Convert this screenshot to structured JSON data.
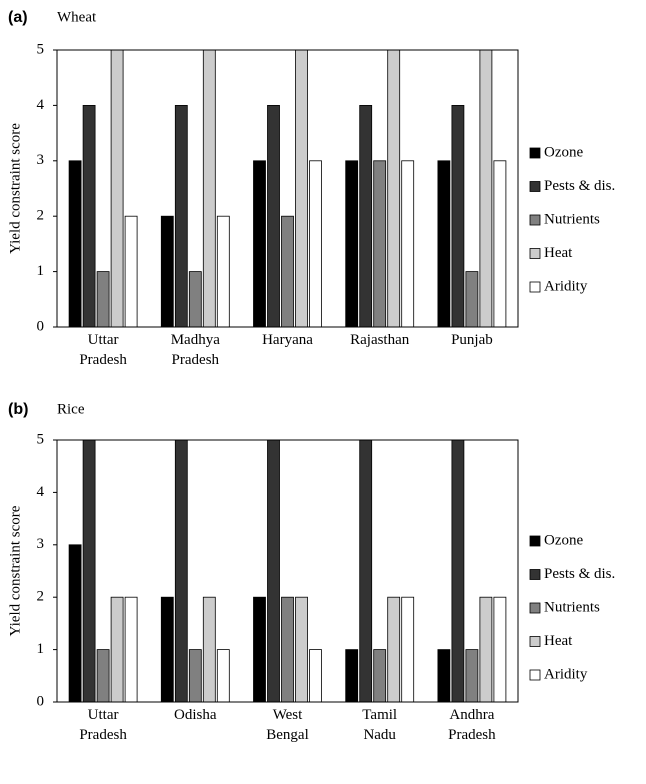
{
  "chart_data": [
    {
      "type": "bar",
      "panel_label": "(a)",
      "title": "Wheat",
      "ylabel": "Yield constraint score",
      "categories": [
        "Uttar Pradesh",
        "Madhya Pradesh",
        "Haryana",
        "Rajasthan",
        "Punjab"
      ],
      "series": [
        {
          "name": "Ozone",
          "color": "#000000",
          "values": [
            3,
            2,
            3,
            3,
            3
          ]
        },
        {
          "name": "Pests & dis.",
          "color": "#333333",
          "values": [
            4,
            4,
            4,
            4,
            4
          ]
        },
        {
          "name": "Nutrients",
          "color": "#808080",
          "values": [
            1,
            1,
            2,
            3,
            1
          ]
        },
        {
          "name": "Heat",
          "color": "#cccccc",
          "values": [
            5,
            5,
            5,
            5,
            5
          ]
        },
        {
          "name": "Aridity",
          "color": "#ffffff",
          "values": [
            2,
            2,
            3,
            3,
            3
          ]
        }
      ],
      "ylim": [
        0,
        5
      ],
      "yticks": [
        0,
        1,
        2,
        3,
        4,
        5
      ]
    },
    {
      "type": "bar",
      "panel_label": "(b)",
      "title": "Rice",
      "ylabel": "Yield constraint score",
      "categories": [
        "Uttar Pradesh",
        "Odisha",
        "West Bengal",
        "Tamil Nadu",
        "Andhra Pradesh"
      ],
      "series": [
        {
          "name": "Ozone",
          "color": "#000000",
          "values": [
            3,
            2,
            2,
            1,
            1
          ]
        },
        {
          "name": "Pests & dis.",
          "color": "#333333",
          "values": [
            5,
            5,
            5,
            5,
            5
          ]
        },
        {
          "name": "Nutrients",
          "color": "#808080",
          "values": [
            1,
            1,
            2,
            1,
            1
          ]
        },
        {
          "name": "Heat",
          "color": "#cccccc",
          "values": [
            2,
            2,
            2,
            2,
            2
          ]
        },
        {
          "name": "Aridity",
          "color": "#ffffff",
          "values": [
            2,
            1,
            1,
            2,
            2
          ]
        }
      ],
      "ylim": [
        0,
        5
      ],
      "yticks": [
        0,
        1,
        2,
        3,
        4,
        5
      ]
    }
  ]
}
